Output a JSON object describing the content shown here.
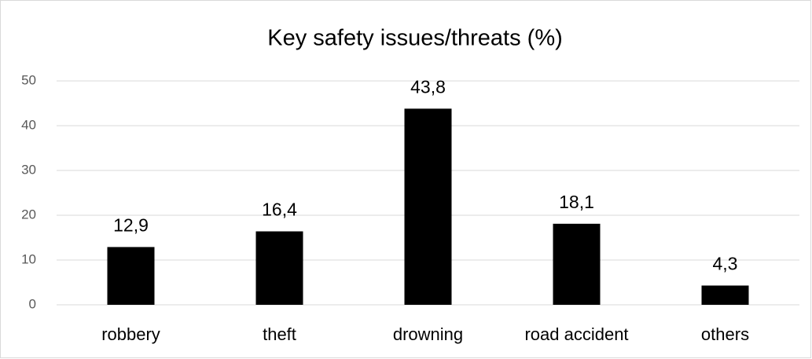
{
  "chart_data": {
    "type": "bar",
    "title": "Key safety issues/threats (%)",
    "categories": [
      "robbery",
      "theft",
      "drowning",
      "road accident",
      "others"
    ],
    "values": [
      12.9,
      16.4,
      43.8,
      18.1,
      4.3
    ],
    "value_labels": [
      "12,9",
      "16,4",
      "43,8",
      "18,1",
      "4,3"
    ],
    "color": "#000000",
    "ylim": [
      0,
      50
    ],
    "yticks": [
      0,
      10,
      20,
      30,
      40,
      50
    ],
    "grid": true
  }
}
